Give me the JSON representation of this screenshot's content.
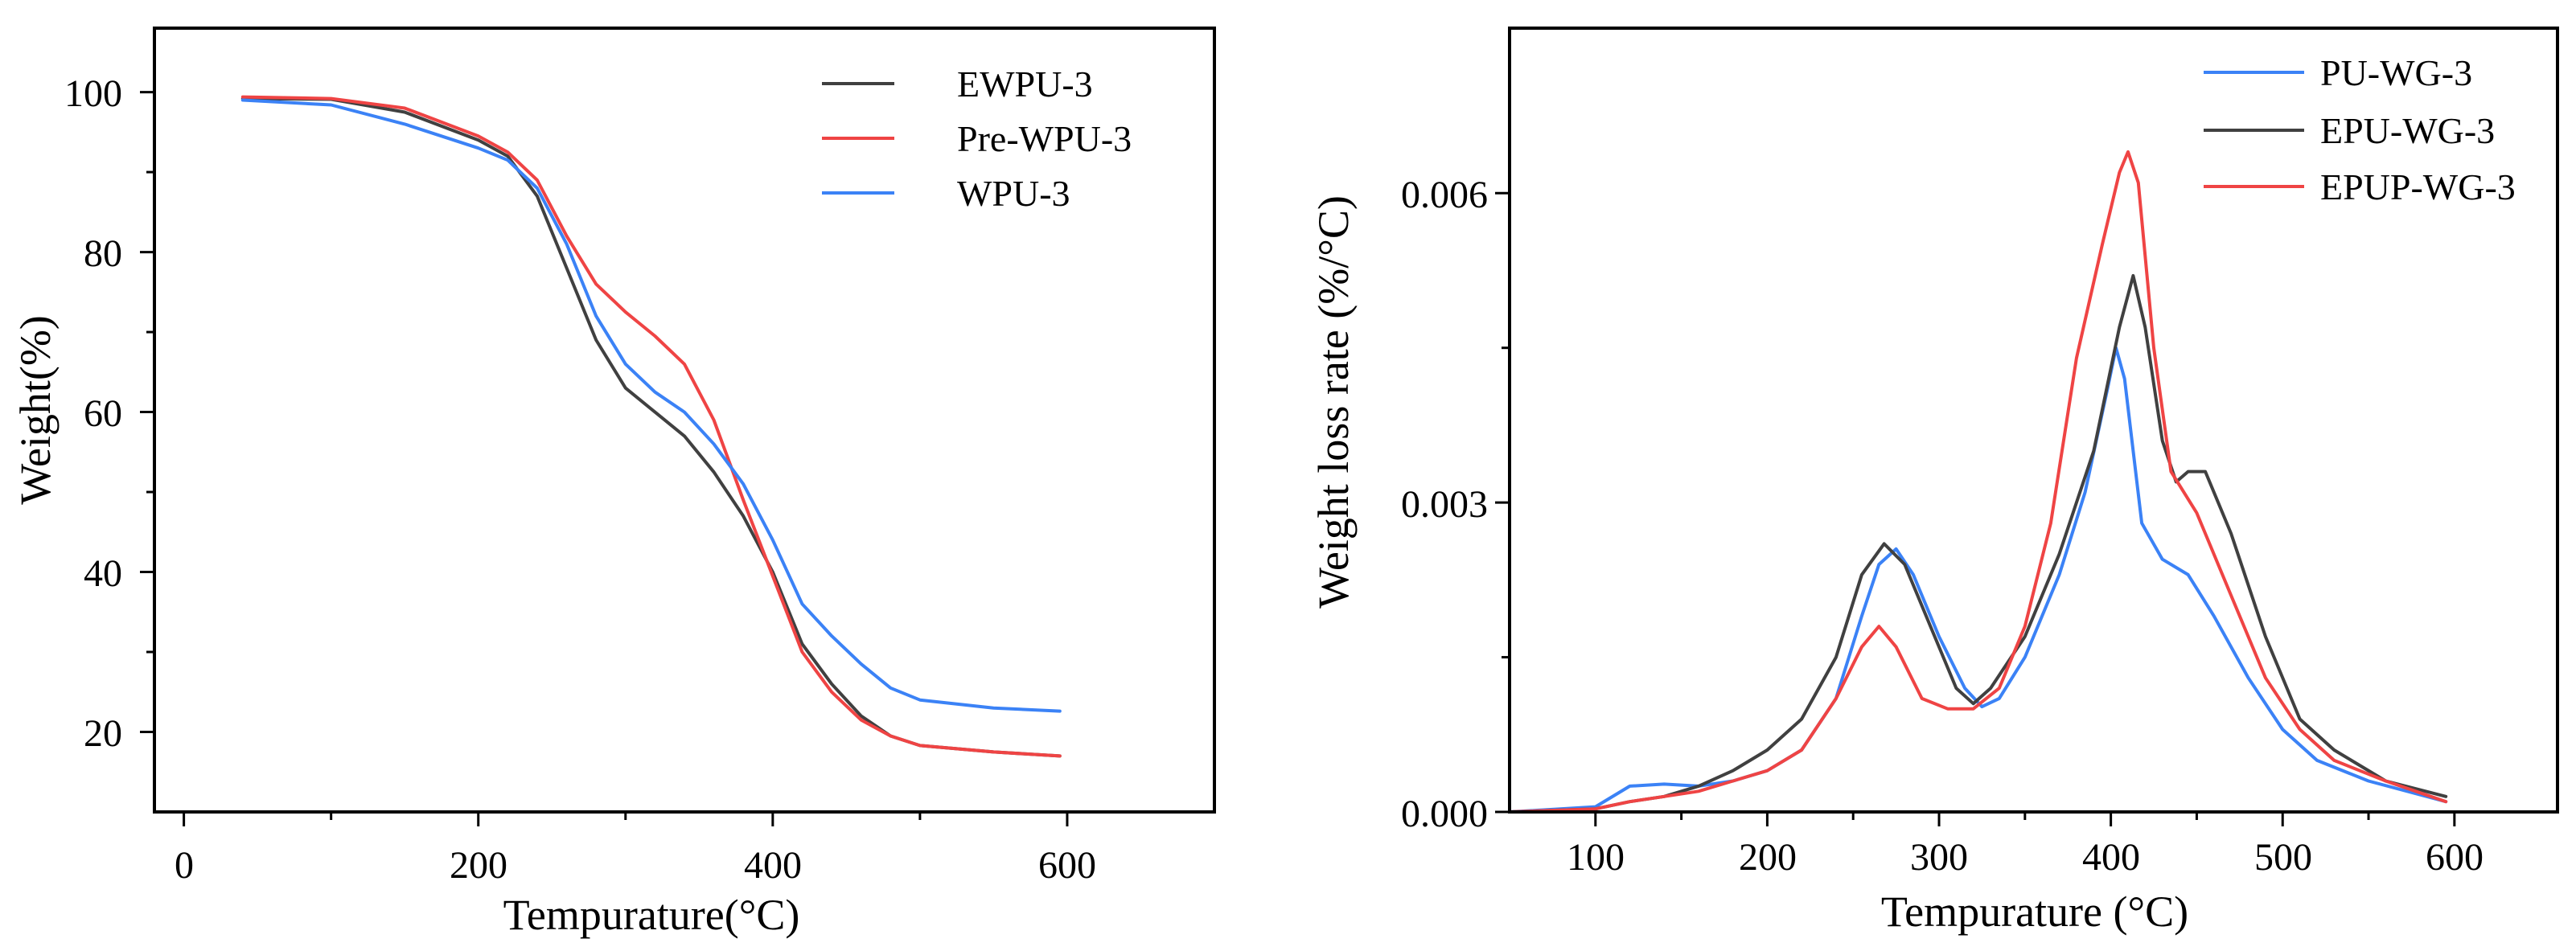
{
  "chart_data": [
    {
      "type": "line",
      "title": "",
      "xlabel": "Tempurature(°C)",
      "ylabel": "Weight(%)",
      "xlim": [
        -20,
        700
      ],
      "ylim": [
        10,
        108
      ],
      "xticks": [
        0,
        200,
        400,
        600
      ],
      "xtick_labels": [
        "0",
        "200",
        "400",
        "600"
      ],
      "yticks": [
        20,
        40,
        60,
        80,
        100
      ],
      "ytick_labels": [
        "20",
        "40",
        "60",
        "80",
        "100"
      ],
      "grid": false,
      "legend_position": "top-right",
      "series": [
        {
          "name": "EWPU-3",
          "color": "#404040",
          "points": [
            [
              40,
              99.2
            ],
            [
              100,
              99.1
            ],
            [
              150,
              97.5
            ],
            [
              200,
              94
            ],
            [
              220,
              92
            ],
            [
              240,
              87
            ],
            [
              260,
              78
            ],
            [
              280,
              69
            ],
            [
              300,
              63
            ],
            [
              320,
              60
            ],
            [
              340,
              57
            ],
            [
              360,
              52.5
            ],
            [
              380,
              47
            ],
            [
              400,
              40
            ],
            [
              420,
              31
            ],
            [
              440,
              26
            ],
            [
              460,
              22
            ],
            [
              480,
              19.5
            ],
            [
              500,
              18.3
            ],
            [
              550,
              17.5
            ],
            [
              595,
              17
            ]
          ]
        },
        {
          "name": "Pre-WPU-3",
          "color": "#ef4444",
          "points": [
            [
              40,
              99.4
            ],
            [
              100,
              99.2
            ],
            [
              150,
              98
            ],
            [
              200,
              94.5
            ],
            [
              220,
              92.5
            ],
            [
              240,
              89
            ],
            [
              260,
              82
            ],
            [
              280,
              76
            ],
            [
              300,
              72.5
            ],
            [
              320,
              69.5
            ],
            [
              340,
              66
            ],
            [
              360,
              59
            ],
            [
              380,
              49
            ],
            [
              400,
              39.5
            ],
            [
              420,
              30
            ],
            [
              440,
              25
            ],
            [
              460,
              21.5
            ],
            [
              480,
              19.5
            ],
            [
              500,
              18.3
            ],
            [
              550,
              17.5
            ],
            [
              595,
              17
            ]
          ]
        },
        {
          "name": "WPU-3",
          "color": "#3b82f6",
          "points": [
            [
              40,
              99
            ],
            [
              100,
              98.4
            ],
            [
              150,
              96
            ],
            [
              200,
              93
            ],
            [
              220,
              91.5
            ],
            [
              240,
              88
            ],
            [
              260,
              81
            ],
            [
              280,
              72
            ],
            [
              300,
              66
            ],
            [
              320,
              62.5
            ],
            [
              340,
              60
            ],
            [
              360,
              56
            ],
            [
              380,
              51
            ],
            [
              400,
              44
            ],
            [
              420,
              36
            ],
            [
              440,
              32
            ],
            [
              460,
              28.5
            ],
            [
              480,
              25.5
            ],
            [
              500,
              24
            ],
            [
              550,
              23
            ],
            [
              595,
              22.6
            ]
          ]
        }
      ]
    },
    {
      "type": "line",
      "title": "",
      "xlabel": "Tempurature (°C)",
      "ylabel": "Weight loss rate (%/°C)",
      "xlim": [
        50,
        660
      ],
      "ylim": [
        0,
        0.0076
      ],
      "xticks": [
        100,
        200,
        300,
        400,
        500,
        600
      ],
      "xtick_labels": [
        "100",
        "200",
        "300",
        "400",
        "500",
        "600"
      ],
      "yticks": [
        0,
        0.003,
        0.006
      ],
      "ytick_labels": [
        "0.000",
        "0.003",
        "0.006"
      ],
      "grid": false,
      "legend_position": "top-right",
      "series": [
        {
          "name": "PU-WG-3",
          "color": "#3b82f6",
          "points": [
            [
              50,
              0
            ],
            [
              100,
              5e-05
            ],
            [
              120,
              0.00025
            ],
            [
              140,
              0.00027
            ],
            [
              160,
              0.00025
            ],
            [
              180,
              0.0003
            ],
            [
              200,
              0.0004
            ],
            [
              220,
              0.0006
            ],
            [
              240,
              0.0011
            ],
            [
              255,
              0.0019
            ],
            [
              265,
              0.0024
            ],
            [
              275,
              0.00255
            ],
            [
              285,
              0.0023
            ],
            [
              300,
              0.0017
            ],
            [
              315,
              0.0012
            ],
            [
              325,
              0.00102
            ],
            [
              335,
              0.0011
            ],
            [
              350,
              0.0015
            ],
            [
              370,
              0.0023
            ],
            [
              385,
              0.0031
            ],
            [
              398,
              0.0041
            ],
            [
              403,
              0.0045
            ],
            [
              408,
              0.0042
            ],
            [
              418,
              0.0028
            ],
            [
              430,
              0.00245
            ],
            [
              445,
              0.0023
            ],
            [
              460,
              0.0019
            ],
            [
              480,
              0.0013
            ],
            [
              500,
              0.0008
            ],
            [
              520,
              0.0005
            ],
            [
              550,
              0.0003
            ],
            [
              595,
              0.0001
            ]
          ]
        },
        {
          "name": "EPU-WG-3",
          "color": "#404040",
          "points": [
            [
              50,
              0
            ],
            [
              100,
              3e-05
            ],
            [
              120,
              0.0001
            ],
            [
              140,
              0.00015
            ],
            [
              160,
              0.00025
            ],
            [
              180,
              0.0004
            ],
            [
              200,
              0.0006
            ],
            [
              220,
              0.0009
            ],
            [
              240,
              0.0015
            ],
            [
              255,
              0.0023
            ],
            [
              268,
              0.0026
            ],
            [
              280,
              0.0024
            ],
            [
              295,
              0.0018
            ],
            [
              310,
              0.0012
            ],
            [
              320,
              0.00105
            ],
            [
              330,
              0.0012
            ],
            [
              350,
              0.0017
            ],
            [
              370,
              0.0025
            ],
            [
              390,
              0.0035
            ],
            [
              405,
              0.0047
            ],
            [
              413,
              0.0052
            ],
            [
              420,
              0.0047
            ],
            [
              430,
              0.0036
            ],
            [
              438,
              0.0032
            ],
            [
              445,
              0.0033
            ],
            [
              455,
              0.0033
            ],
            [
              470,
              0.0027
            ],
            [
              490,
              0.0017
            ],
            [
              510,
              0.0009
            ],
            [
              530,
              0.0006
            ],
            [
              560,
              0.0003
            ],
            [
              595,
              0.00015
            ]
          ]
        },
        {
          "name": "EPUP-WG-3",
          "color": "#ef4444",
          "points": [
            [
              50,
              0
            ],
            [
              100,
              3e-05
            ],
            [
              120,
              0.0001
            ],
            [
              140,
              0.00015
            ],
            [
              160,
              0.0002
            ],
            [
              180,
              0.0003
            ],
            [
              200,
              0.0004
            ],
            [
              220,
              0.0006
            ],
            [
              240,
              0.0011
            ],
            [
              255,
              0.0016
            ],
            [
              265,
              0.0018
            ],
            [
              275,
              0.0016
            ],
            [
              290,
              0.0011
            ],
            [
              305,
              0.001
            ],
            [
              320,
              0.001
            ],
            [
              335,
              0.0012
            ],
            [
              350,
              0.0018
            ],
            [
              365,
              0.0028
            ],
            [
              380,
              0.0044
            ],
            [
              395,
              0.0055
            ],
            [
              405,
              0.0062
            ],
            [
              410,
              0.0064
            ],
            [
              416,
              0.0061
            ],
            [
              425,
              0.0045
            ],
            [
              435,
              0.0033
            ],
            [
              450,
              0.0029
            ],
            [
              470,
              0.0021
            ],
            [
              490,
              0.0013
            ],
            [
              510,
              0.0008
            ],
            [
              530,
              0.0005
            ],
            [
              560,
              0.0003
            ],
            [
              595,
              0.0001
            ]
          ]
        }
      ]
    }
  ]
}
